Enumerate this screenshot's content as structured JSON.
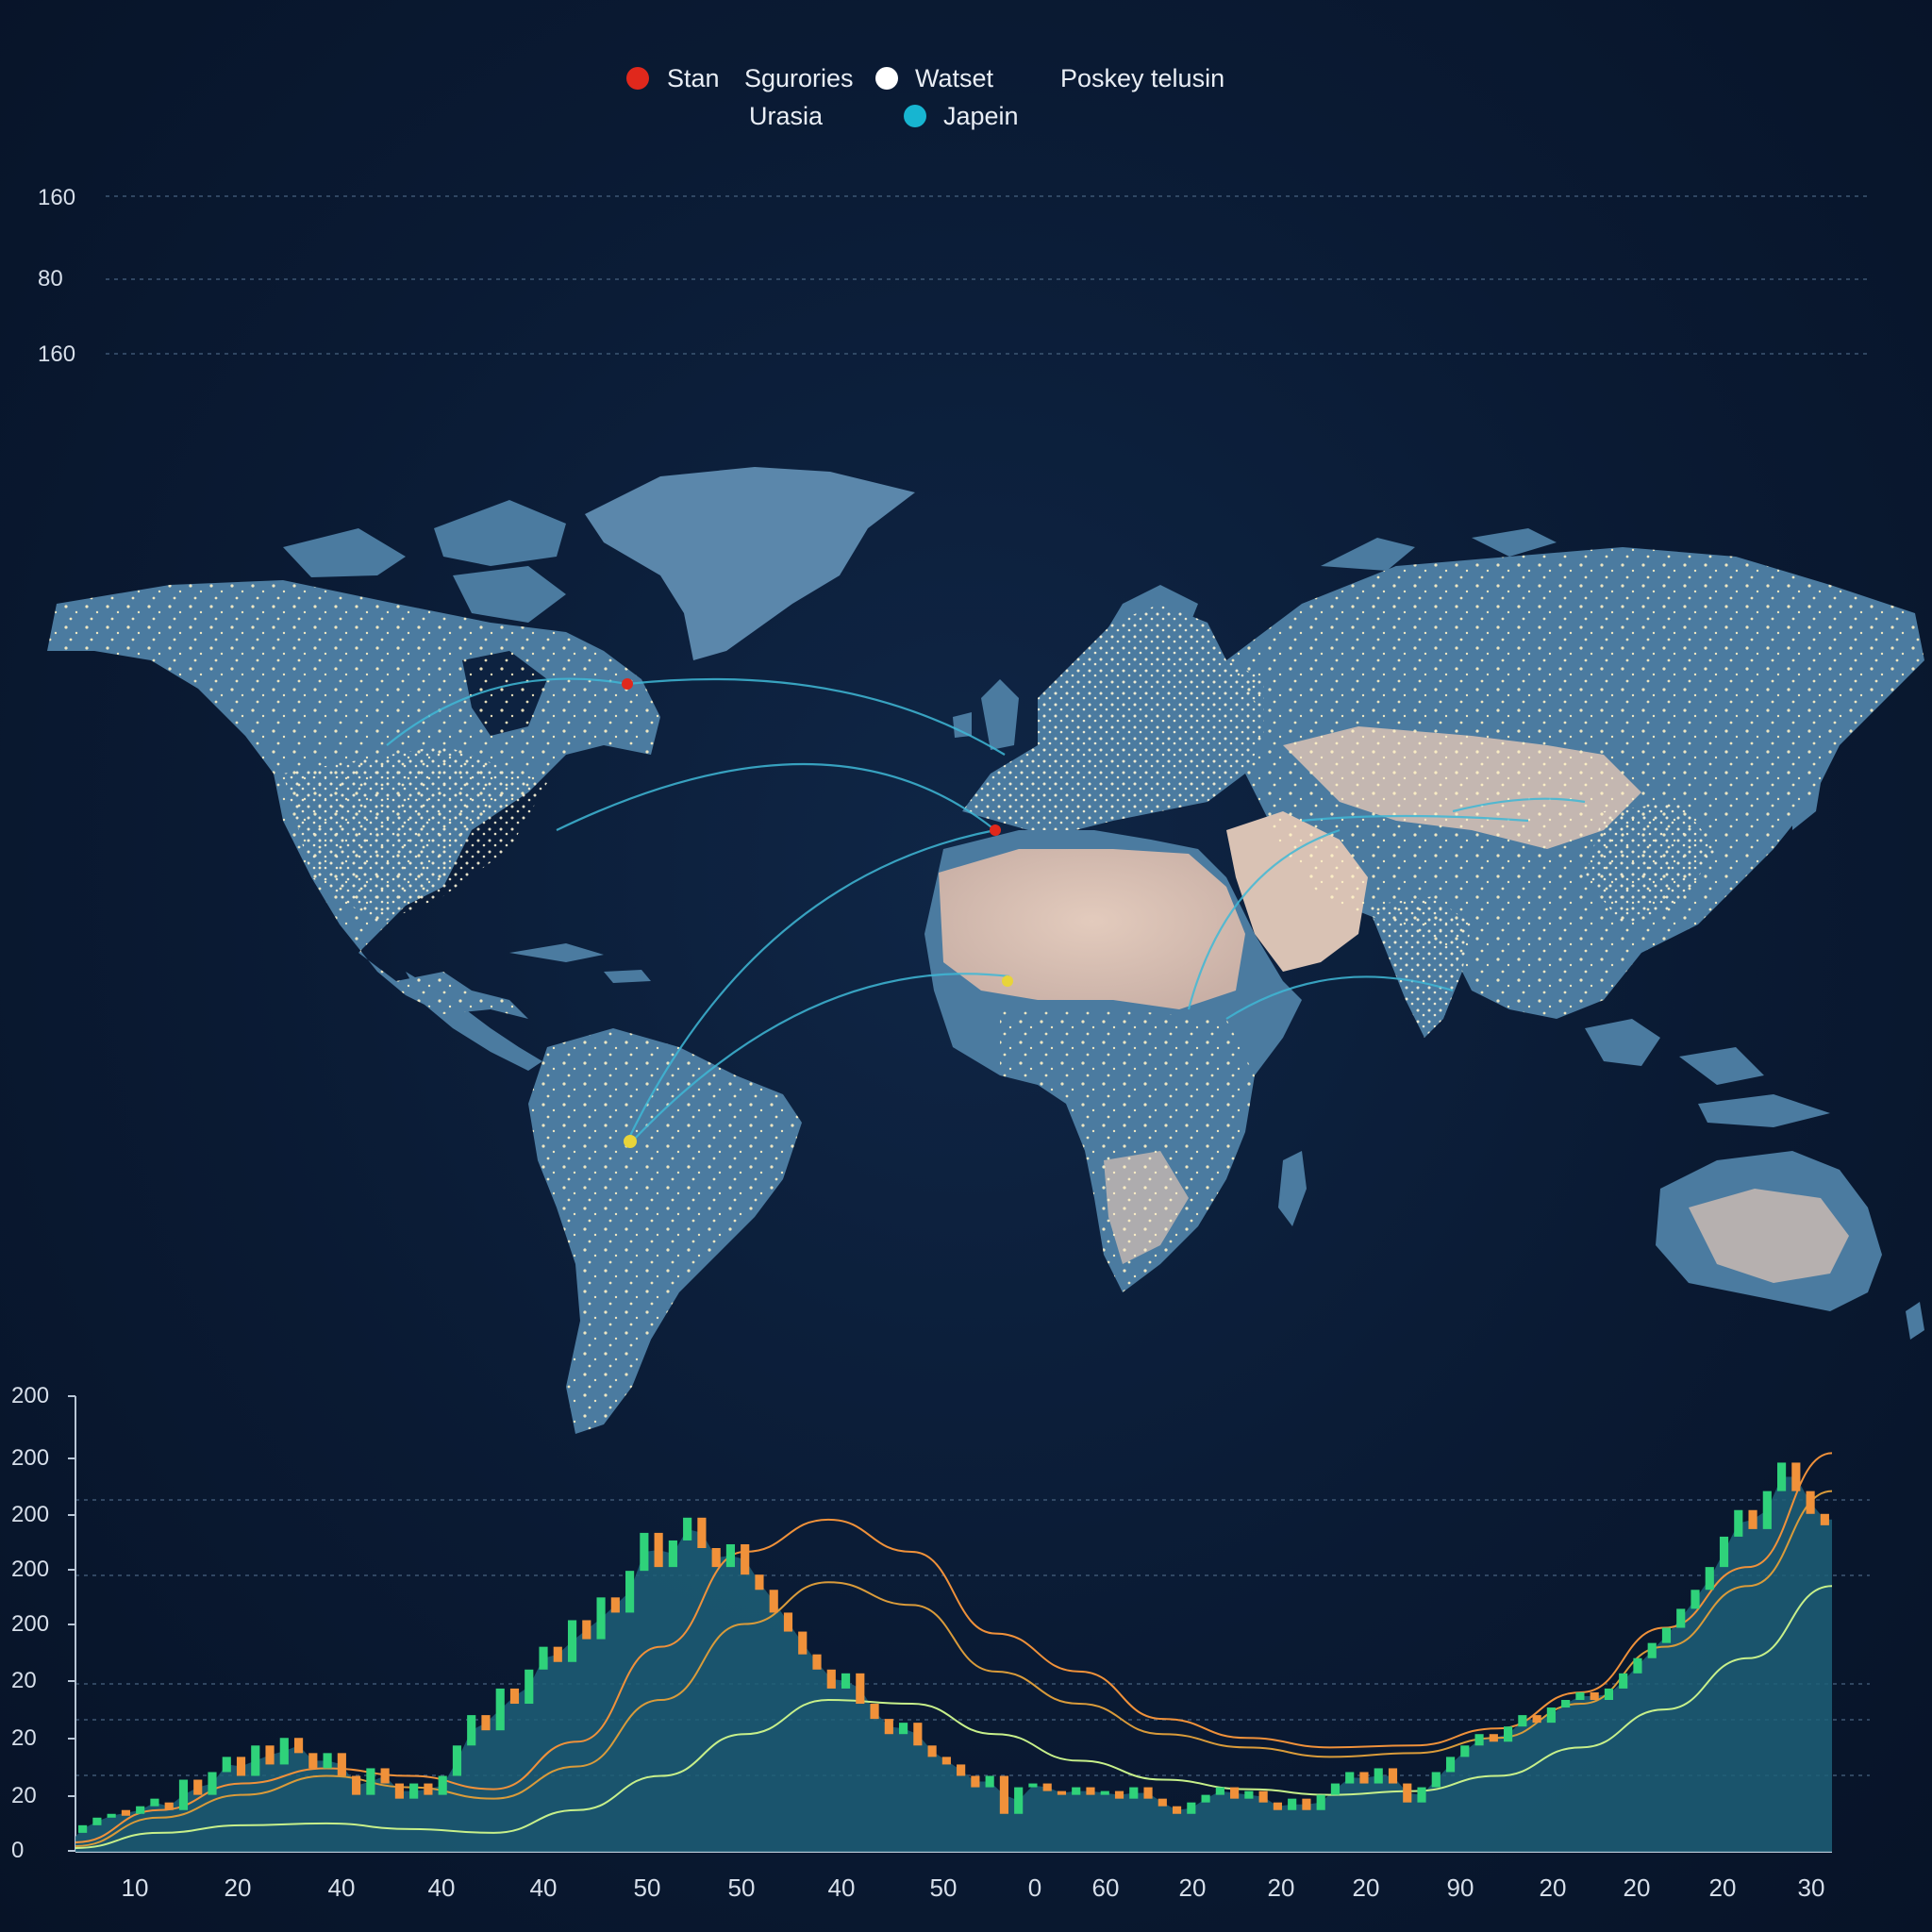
{
  "legend": [
    {
      "label": "Stan",
      "color": "#e0281c"
    },
    {
      "label": "Sgurories",
      "color": null
    },
    {
      "label": "Watset",
      "color": "#ffffff"
    },
    {
      "label": "Poskey telusin",
      "color": null
    },
    {
      "label": "Urasia",
      "color": null
    },
    {
      "label": "Japein",
      "color": "#17b5d1"
    }
  ],
  "top_axis": {
    "ticks": [
      "160",
      "80",
      "160"
    ]
  },
  "map": {
    "land_color": "#4b7ba0",
    "desert_color": "#d9c2b4",
    "light_color": "#fff2c6",
    "arc_color": "#3fb8d6",
    "markers": [
      {
        "name": "north-america-marker",
        "color": "#e0281c"
      },
      {
        "name": "iberia-marker",
        "color": "#e0281c"
      },
      {
        "name": "west-africa-marker",
        "color": "#e8d43a"
      },
      {
        "name": "south-america-marker",
        "color": "#e8d43a"
      }
    ]
  },
  "chart_data": {
    "type": "line",
    "title": "",
    "y_tick_labels": [
      "200",
      "200",
      "200",
      "200",
      "200",
      "20",
      "20",
      "20",
      "0"
    ],
    "x_tick_labels": [
      "10",
      "20",
      "40",
      "40",
      "40",
      "50",
      "50",
      "40",
      "50",
      "0",
      "60",
      "20",
      "20",
      "20",
      "90",
      "20",
      "20",
      "20",
      "30"
    ],
    "ylim": [
      0,
      240
    ],
    "candle_up_color": "#2fd27a",
    "candle_down_color": "#f0913a",
    "area_color": "#1d5f78",
    "series": [
      {
        "color": "#f0913a",
        "values": [
          5,
          22,
          36,
          44,
          40,
          33,
          58,
          108,
          158,
          175,
          158,
          115,
          95,
          70,
          60,
          55,
          56,
          65,
          84,
          118,
          150,
          210
        ]
      },
      {
        "color": "#d99b3a",
        "values": [
          3,
          18,
          30,
          40,
          34,
          28,
          45,
          80,
          120,
          142,
          130,
          95,
          78,
          62,
          55,
          50,
          52,
          60,
          78,
          108,
          140,
          190
        ]
      },
      {
        "color": "#c7f08a",
        "values": [
          2,
          10,
          14,
          15,
          12,
          10,
          22,
          40,
          62,
          80,
          78,
          62,
          48,
          38,
          33,
          30,
          32,
          40,
          55,
          75,
          102,
          140
        ]
      }
    ],
    "candles": [
      {
        "o": 10,
        "c": 14,
        "up": true
      },
      {
        "o": 14,
        "c": 18,
        "up": true
      },
      {
        "o": 18,
        "c": 20,
        "up": true
      },
      {
        "o": 22,
        "c": 19,
        "up": false
      },
      {
        "o": 20,
        "c": 24,
        "up": true
      },
      {
        "o": 24,
        "c": 28,
        "up": true
      },
      {
        "o": 26,
        "c": 22,
        "up": false
      },
      {
        "o": 22,
        "c": 38,
        "up": true
      },
      {
        "o": 38,
        "c": 30,
        "up": false
      },
      {
        "o": 30,
        "c": 42,
        "up": true
      },
      {
        "o": 42,
        "c": 50,
        "up": true
      },
      {
        "o": 50,
        "c": 40,
        "up": false
      },
      {
        "o": 40,
        "c": 56,
        "up": true
      },
      {
        "o": 56,
        "c": 46,
        "up": false
      },
      {
        "o": 46,
        "c": 60,
        "up": true
      },
      {
        "o": 60,
        "c": 52,
        "up": false
      },
      {
        "o": 52,
        "c": 44,
        "up": false
      },
      {
        "o": 44,
        "c": 52,
        "up": true
      },
      {
        "o": 52,
        "c": 40,
        "up": false
      },
      {
        "o": 40,
        "c": 30,
        "up": false
      },
      {
        "o": 30,
        "c": 44,
        "up": true
      },
      {
        "o": 44,
        "c": 36,
        "up": false
      },
      {
        "o": 36,
        "c": 28,
        "up": false
      },
      {
        "o": 28,
        "c": 36,
        "up": true
      },
      {
        "o": 36,
        "c": 30,
        "up": false
      },
      {
        "o": 30,
        "c": 40,
        "up": true
      },
      {
        "o": 40,
        "c": 56,
        "up": true
      },
      {
        "o": 56,
        "c": 72,
        "up": true
      },
      {
        "o": 72,
        "c": 64,
        "up": false
      },
      {
        "o": 64,
        "c": 86,
        "up": true
      },
      {
        "o": 86,
        "c": 78,
        "up": false
      },
      {
        "o": 78,
        "c": 96,
        "up": true
      },
      {
        "o": 96,
        "c": 108,
        "up": true
      },
      {
        "o": 108,
        "c": 100,
        "up": false
      },
      {
        "o": 100,
        "c": 122,
        "up": true
      },
      {
        "o": 122,
        "c": 112,
        "up": false
      },
      {
        "o": 112,
        "c": 134,
        "up": true
      },
      {
        "o": 134,
        "c": 126,
        "up": false
      },
      {
        "o": 126,
        "c": 148,
        "up": true
      },
      {
        "o": 148,
        "c": 168,
        "up": true
      },
      {
        "o": 168,
        "c": 150,
        "up": false
      },
      {
        "o": 150,
        "c": 164,
        "up": true
      },
      {
        "o": 164,
        "c": 176,
        "up": true
      },
      {
        "o": 176,
        "c": 160,
        "up": false
      },
      {
        "o": 160,
        "c": 150,
        "up": false
      },
      {
        "o": 150,
        "c": 162,
        "up": true
      },
      {
        "o": 162,
        "c": 146,
        "up": false
      },
      {
        "o": 146,
        "c": 138,
        "up": false
      },
      {
        "o": 138,
        "c": 126,
        "up": false
      },
      {
        "o": 126,
        "c": 116,
        "up": false
      },
      {
        "o": 116,
        "c": 104,
        "up": false
      },
      {
        "o": 104,
        "c": 96,
        "up": false
      },
      {
        "o": 96,
        "c": 86,
        "up": false
      },
      {
        "o": 86,
        "c": 94,
        "up": true
      },
      {
        "o": 94,
        "c": 78,
        "up": false
      },
      {
        "o": 78,
        "c": 70,
        "up": false
      },
      {
        "o": 70,
        "c": 62,
        "up": false
      },
      {
        "o": 62,
        "c": 68,
        "up": true
      },
      {
        "o": 68,
        "c": 56,
        "up": false
      },
      {
        "o": 56,
        "c": 50,
        "up": false
      },
      {
        "o": 50,
        "c": 46,
        "up": false
      },
      {
        "o": 46,
        "c": 40,
        "up": false
      },
      {
        "o": 40,
        "c": 34,
        "up": false
      },
      {
        "o": 34,
        "c": 40,
        "up": true
      },
      {
        "o": 40,
        "c": 20,
        "up": false
      },
      {
        "o": 20,
        "c": 34,
        "up": true
      },
      {
        "o": 34,
        "c": 36,
        "up": true
      },
      {
        "o": 36,
        "c": 32,
        "up": false
      },
      {
        "o": 32,
        "c": 30,
        "up": false
      },
      {
        "o": 30,
        "c": 34,
        "up": true
      },
      {
        "o": 34,
        "c": 30,
        "up": false
      },
      {
        "o": 30,
        "c": 32,
        "up": true
      },
      {
        "o": 32,
        "c": 28,
        "up": false
      },
      {
        "o": 28,
        "c": 34,
        "up": true
      },
      {
        "o": 34,
        "c": 28,
        "up": false
      },
      {
        "o": 28,
        "c": 24,
        "up": false
      },
      {
        "o": 24,
        "c": 20,
        "up": false
      },
      {
        "o": 20,
        "c": 26,
        "up": true
      },
      {
        "o": 26,
        "c": 30,
        "up": true
      },
      {
        "o": 30,
        "c": 34,
        "up": true
      },
      {
        "o": 34,
        "c": 28,
        "up": false
      },
      {
        "o": 28,
        "c": 32,
        "up": true
      },
      {
        "o": 32,
        "c": 26,
        "up": false
      },
      {
        "o": 26,
        "c": 22,
        "up": false
      },
      {
        "o": 22,
        "c": 28,
        "up": true
      },
      {
        "o": 28,
        "c": 22,
        "up": false
      },
      {
        "o": 22,
        "c": 30,
        "up": true
      },
      {
        "o": 30,
        "c": 36,
        "up": true
      },
      {
        "o": 36,
        "c": 42,
        "up": true
      },
      {
        "o": 42,
        "c": 36,
        "up": false
      },
      {
        "o": 36,
        "c": 44,
        "up": true
      },
      {
        "o": 44,
        "c": 36,
        "up": false
      },
      {
        "o": 36,
        "c": 26,
        "up": false
      },
      {
        "o": 26,
        "c": 34,
        "up": true
      },
      {
        "o": 34,
        "c": 42,
        "up": true
      },
      {
        "o": 42,
        "c": 50,
        "up": true
      },
      {
        "o": 50,
        "c": 56,
        "up": true
      },
      {
        "o": 56,
        "c": 62,
        "up": true
      },
      {
        "o": 62,
        "c": 58,
        "up": false
      },
      {
        "o": 58,
        "c": 66,
        "up": true
      },
      {
        "o": 66,
        "c": 72,
        "up": true
      },
      {
        "o": 72,
        "c": 68,
        "up": false
      },
      {
        "o": 68,
        "c": 76,
        "up": true
      },
      {
        "o": 76,
        "c": 80,
        "up": true
      },
      {
        "o": 80,
        "c": 84,
        "up": true
      },
      {
        "o": 84,
        "c": 80,
        "up": false
      },
      {
        "o": 80,
        "c": 86,
        "up": true
      },
      {
        "o": 86,
        "c": 94,
        "up": true
      },
      {
        "o": 94,
        "c": 102,
        "up": true
      },
      {
        "o": 102,
        "c": 110,
        "up": true
      },
      {
        "o": 110,
        "c": 118,
        "up": true
      },
      {
        "o": 118,
        "c": 128,
        "up": true
      },
      {
        "o": 128,
        "c": 138,
        "up": true
      },
      {
        "o": 138,
        "c": 150,
        "up": true
      },
      {
        "o": 150,
        "c": 166,
        "up": true
      },
      {
        "o": 166,
        "c": 180,
        "up": true
      },
      {
        "o": 180,
        "c": 170,
        "up": false
      },
      {
        "o": 170,
        "c": 190,
        "up": true
      },
      {
        "o": 190,
        "c": 205,
        "up": true
      },
      {
        "o": 205,
        "c": 190,
        "up": false
      },
      {
        "o": 190,
        "c": 178,
        "up": false
      },
      {
        "o": 178,
        "c": 172,
        "up": false
      }
    ]
  }
}
